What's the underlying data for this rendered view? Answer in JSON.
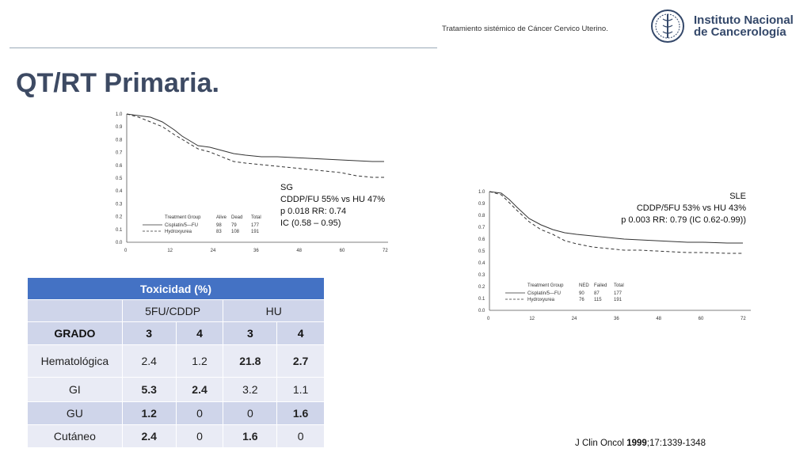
{
  "header": {
    "subtitle": "Tratamiento sistémico de Cáncer Cervico Uterino.",
    "institution_line1": "Instituto Nacional",
    "institution_line2": "de Cancerología"
  },
  "slide_title": "QT/RT Primaria.",
  "plot_left": {
    "y_ticks": [
      "1.0",
      "0.9",
      "0.8",
      "0.7",
      "0.6",
      "0.5",
      "0.4",
      "0.3",
      "0.2",
      "0.1",
      "0.0"
    ],
    "x_ticks": [
      "0",
      "12",
      "24",
      "36",
      "48",
      "60",
      "72"
    ],
    "legend_header": [
      "Treatment Group",
      "Alive",
      "Dead",
      "Total"
    ],
    "legend_rows": [
      [
        "Cisplatin/5—FU",
        "98",
        "79",
        "177"
      ],
      [
        "Hydroxyurea",
        "83",
        "108",
        "191"
      ]
    ],
    "stats": [
      "SG",
      "CDDP/FU 55% vs HU 47%",
      "p 0.018 RR: 0.74",
      "IC (0.58 – 0.95)"
    ]
  },
  "plot_right": {
    "y_ticks": [
      "1.0",
      "0.9",
      "0.8",
      "0.7",
      "0.6",
      "0.5",
      "0.4",
      "0.3",
      "0.2",
      "0.1",
      "0.0"
    ],
    "x_ticks": [
      "0",
      "12",
      "24",
      "36",
      "48",
      "60",
      "72"
    ],
    "legend_header": [
      "Treatment Group",
      "NED",
      "Failed",
      "Total"
    ],
    "legend_rows": [
      [
        "Cisplatin/5—FU",
        "90",
        "87",
        "177"
      ],
      [
        "Hydroxyurea",
        "76",
        "115",
        "191"
      ]
    ],
    "stats": [
      "SLE",
      "CDDP/5FU 53% vs HU 43%",
      "p 0.003 RR: 0.79 (IC 0.62-0.99))"
    ]
  },
  "toxicity_table": {
    "title": "Toxicidad (%)",
    "group_headers": [
      "",
      "5FU/CDDP",
      "HU"
    ],
    "grade_row": [
      "GRADO",
      "3",
      "4",
      "3",
      "4"
    ],
    "rows": [
      {
        "label": "Hematológica",
        "values": [
          "2.4",
          "1.2",
          "21.8",
          "2.7"
        ]
      },
      {
        "label": "GI",
        "values": [
          "5.3",
          "2.4",
          "3.2",
          "1.1"
        ]
      },
      {
        "label": "GU",
        "values": [
          "1.2",
          "0",
          "0",
          "1.6"
        ]
      },
      {
        "label": "Cutáneo",
        "values": [
          "2.4",
          "0",
          "1.6",
          "0"
        ]
      }
    ]
  },
  "citation": {
    "journal": "J Clin Oncol ",
    "year": "1999",
    "rest": ";17:1339-1348"
  }
}
